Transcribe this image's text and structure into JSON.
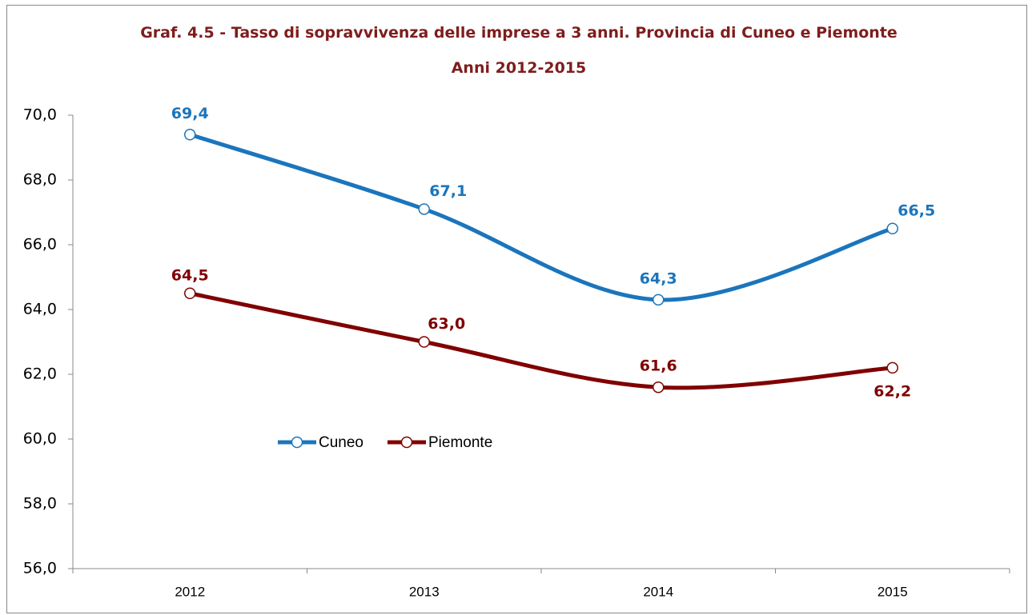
{
  "chart_data": {
    "type": "line",
    "title": "Graf. 4.5 - Tasso di sopravvivenza delle imprese a 3 anni. Provincia di Cuneo e Piemonte",
    "subtitle": "Anni 2012-2015",
    "categories": [
      "2012",
      "2013",
      "2014",
      "2015"
    ],
    "series": [
      {
        "name": "Cuneo",
        "color": "#1b75bc",
        "values": [
          69.4,
          67.1,
          64.3,
          66.5
        ],
        "value_labels": [
          "69,4",
          "67,1",
          "64,3",
          "66,5"
        ]
      },
      {
        "name": "Piemonte",
        "color": "#800000",
        "values": [
          64.5,
          63.0,
          61.6,
          62.2
        ],
        "value_labels": [
          "64,5",
          "63,0",
          "61,6",
          "62,2"
        ]
      }
    ],
    "ylim": [
      56,
      70
    ],
    "yticks": [
      {
        "value": 56,
        "label": "56,0"
      },
      {
        "value": 58,
        "label": "58,0"
      },
      {
        "value": 60,
        "label": "60,0"
      },
      {
        "value": 62,
        "label": "62,0"
      },
      {
        "value": 64,
        "label": "64,0"
      },
      {
        "value": 66,
        "label": "66,0"
      },
      {
        "value": 68,
        "label": "68,0"
      },
      {
        "value": 70,
        "label": "70,0"
      }
    ],
    "grid": false,
    "smooth": true
  }
}
